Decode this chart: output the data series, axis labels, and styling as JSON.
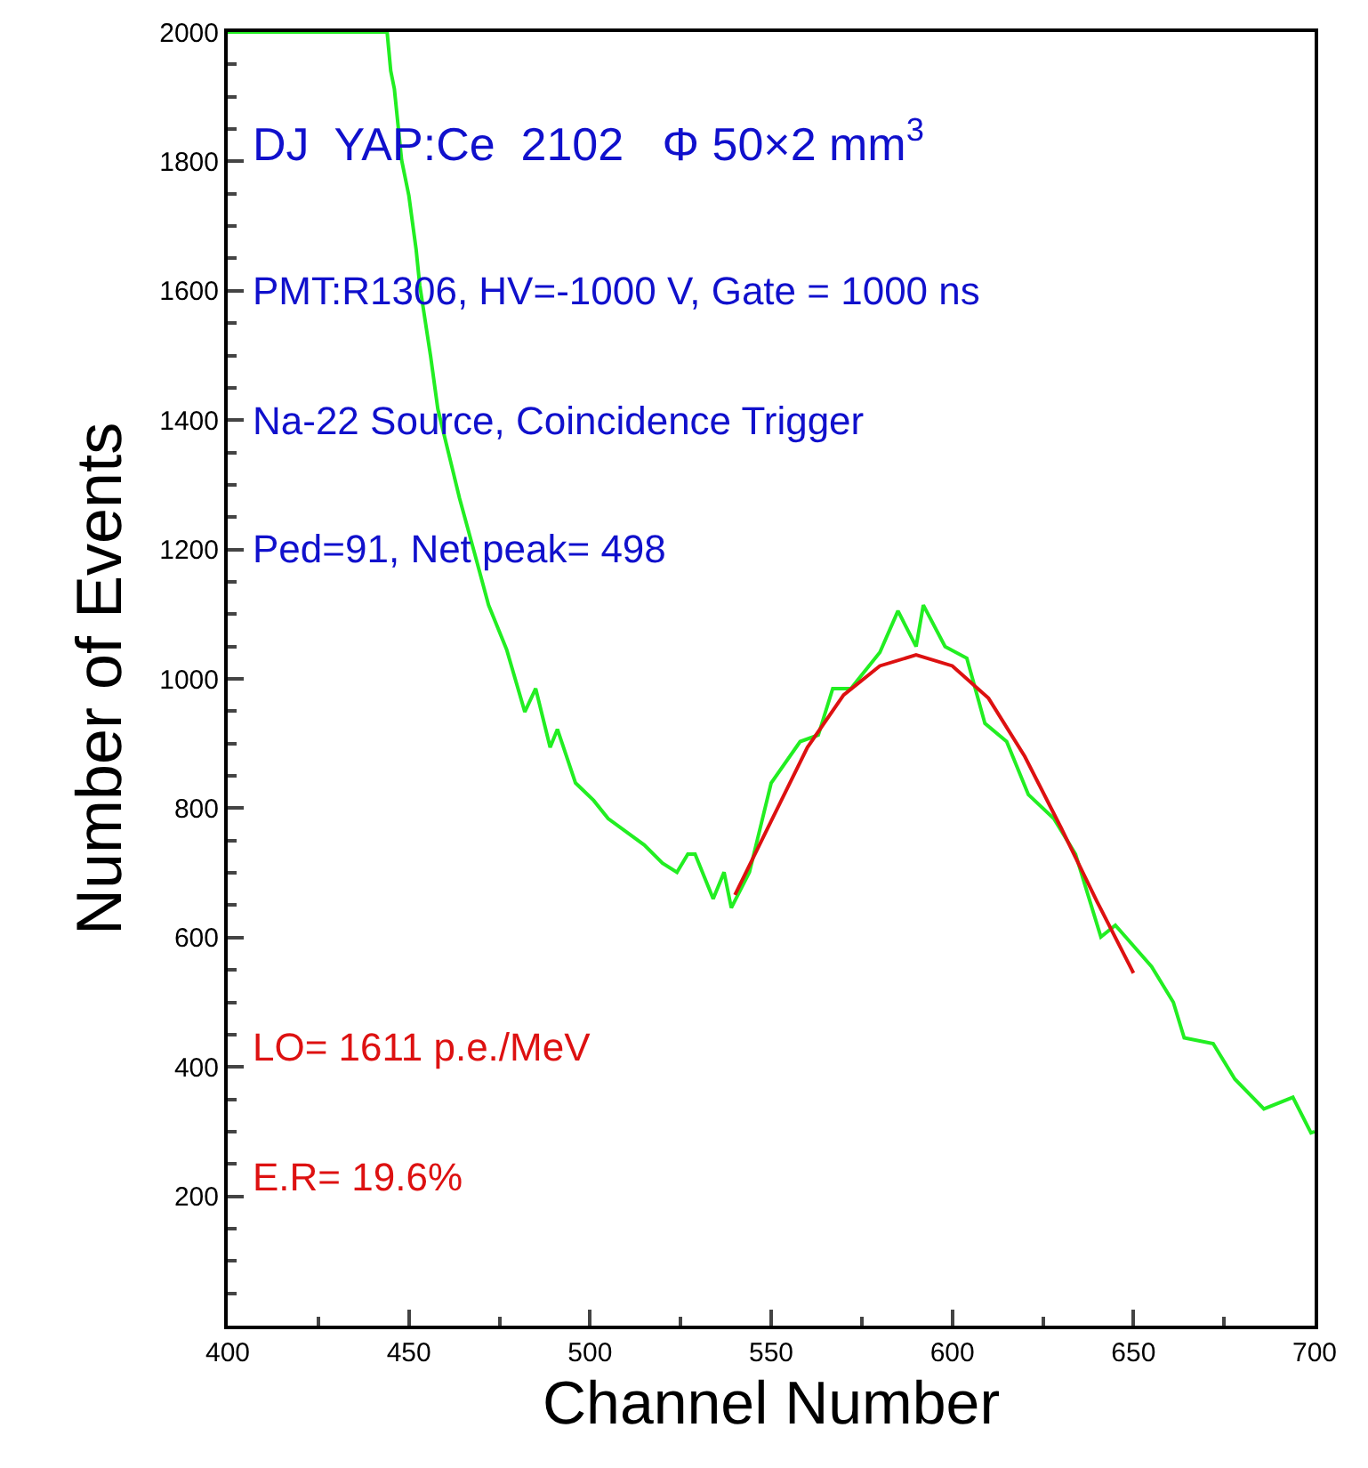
{
  "chart_data": {
    "type": "line",
    "xlabel": "Channel Number",
    "ylabel": "Number of Events",
    "annotations": [
      "DJ  YAP:Ce  2102   Φ 50×2 mm$^{3}$",
      "PMT:R1306, HV=-1000 V, Gate = 1000 ns",
      "Na-22 Source, Coincidence Trigger",
      "Ped=91, Net peak= 498",
      "LO= 1611 p.e./MeV",
      "E.R= 19.6%"
    ],
    "series": [
      {
        "color": "#22ee22",
        "x": [
          400,
          444,
          445,
          446,
          448,
          450,
          452,
          453,
          456,
          458,
          464,
          468,
          472,
          477,
          482,
          485,
          489,
          491,
          496,
          501,
          505,
          515,
          520,
          524,
          527,
          529,
          534,
          537,
          539,
          544,
          550,
          558,
          563,
          567,
          572,
          580,
          585,
          590,
          592,
          598,
          604,
          609,
          615,
          621,
          628,
          634,
          641,
          645,
          655,
          661,
          664,
          672,
          678,
          686,
          694,
          699,
          700
        ],
        "values": [
          2000,
          2000,
          1940,
          1912,
          1802,
          1747,
          1664,
          1609,
          1499,
          1417,
          1279,
          1197,
          1114,
          1045,
          949,
          985,
          894,
          922,
          839,
          812,
          784,
          743,
          715,
          701,
          729,
          729,
          660,
          701,
          646,
          701,
          839,
          903,
          913,
          985,
          985,
          1041,
          1105,
          1050,
          1114,
          1050,
          1032,
          931,
          903,
          821,
          784,
          729,
          601,
          619,
          555,
          500,
          445,
          436,
          381,
          335,
          353,
          298,
          300
        ]
      },
      {
        "color": "#dd1111",
        "x": [
          540,
          550,
          560,
          570,
          580,
          590,
          600,
          610,
          620,
          630,
          640,
          650
        ],
        "values": [
          666,
          780,
          894,
          975,
          1020,
          1037,
          1020,
          970,
          880,
          770,
          655,
          545
        ]
      }
    ],
    "xlim": [
      400,
      700
    ],
    "xticks": [
      400,
      450,
      500,
      550,
      600,
      650,
      700
    ],
    "ylim": [
      0,
      2000
    ],
    "yticks": [
      200,
      400,
      600,
      800,
      1000,
      1200,
      1400,
      1600,
      1800,
      2000
    ],
    "grid": false,
    "marker": "none",
    "line_style": "solid"
  }
}
